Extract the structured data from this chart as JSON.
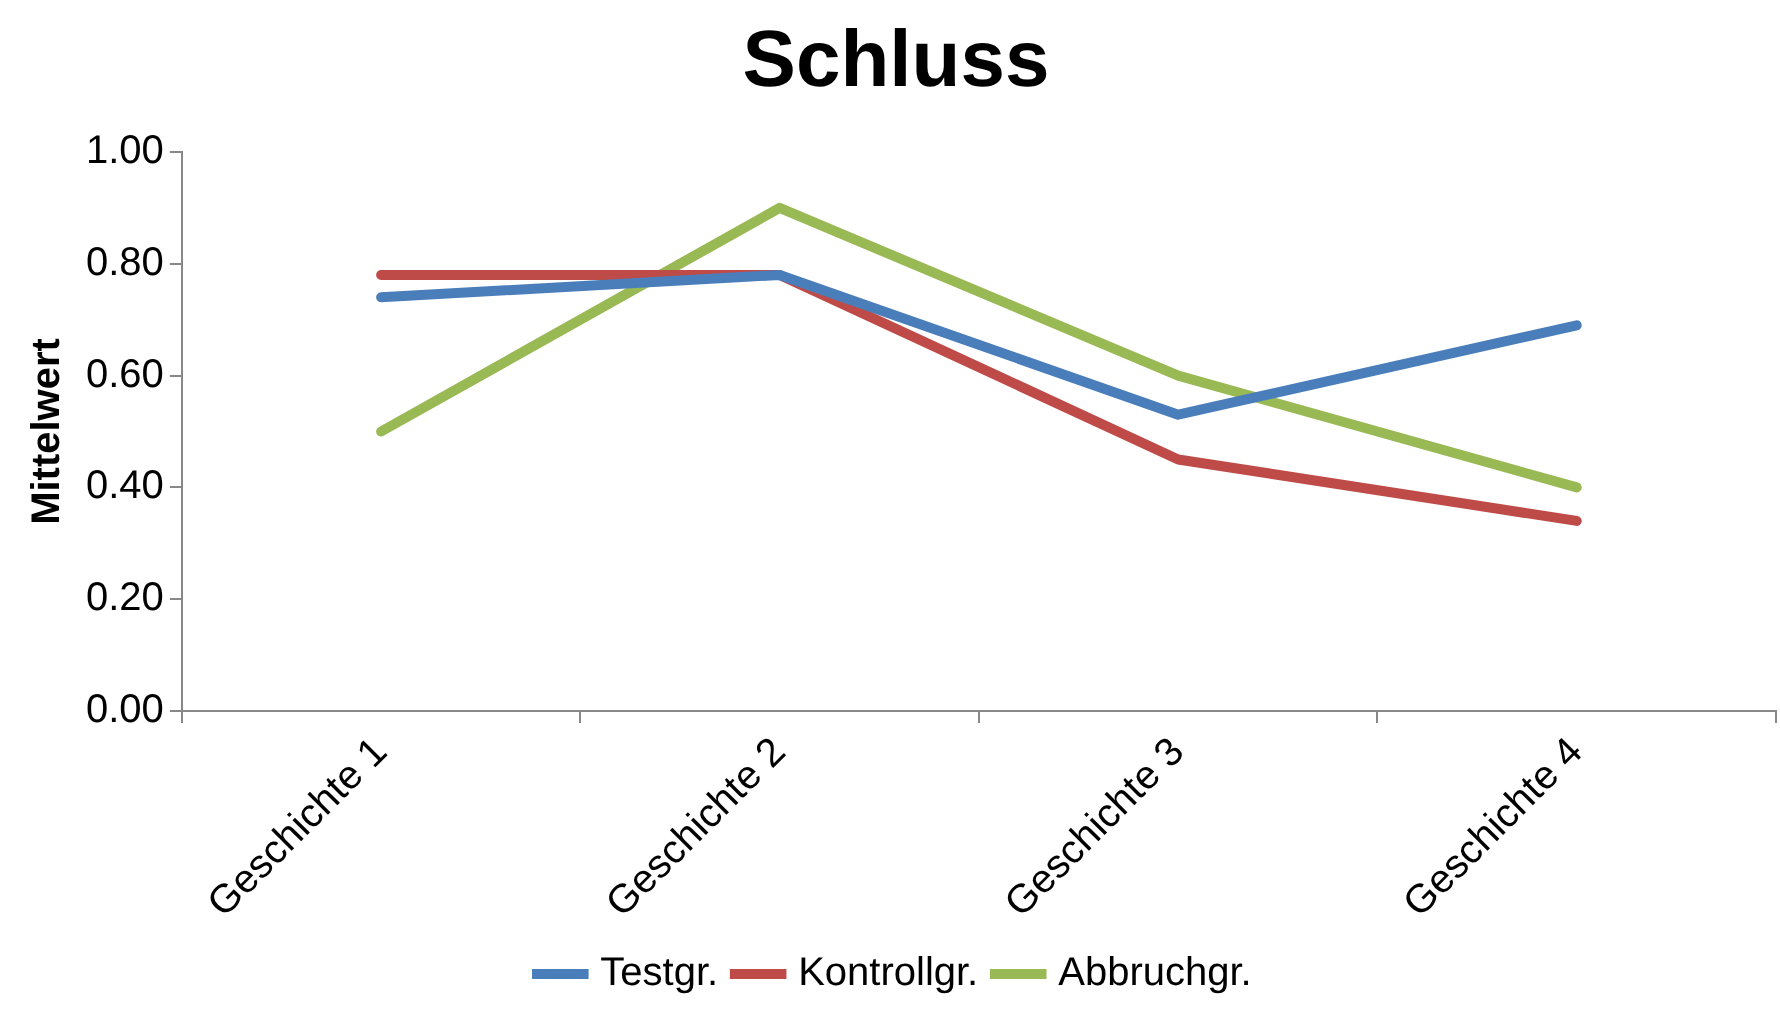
{
  "chart_data": {
    "type": "line",
    "title": "Schluss",
    "ylabel": "Mittelwert",
    "categories": [
      "Geschichte 1",
      "Geschichte 2",
      "Geschichte 3",
      "Geschichte 4"
    ],
    "series": [
      {
        "name": "Testgr.",
        "color": "#4a7ebb",
        "values": [
          0.74,
          0.78,
          0.53,
          0.69
        ]
      },
      {
        "name": "Kontrollgr.",
        "color": "#be4b48",
        "values": [
          0.78,
          0.78,
          0.45,
          0.34
        ]
      },
      {
        "name": "Abbruchgr.",
        "color": "#98b954",
        "values": [
          0.5,
          0.9,
          0.6,
          0.4
        ]
      }
    ],
    "ylim": [
      0,
      1
    ],
    "yticks": [
      {
        "value": 0,
        "label": "0.00"
      },
      {
        "value": 0.2,
        "label": "0.20"
      },
      {
        "value": 0.4,
        "label": "0.40"
      },
      {
        "value": 0.6,
        "label": "0.60"
      },
      {
        "value": 0.8,
        "label": "0.80"
      },
      {
        "value": 1,
        "label": "1.00"
      }
    ],
    "grid": false,
    "legend": "bottom",
    "marker": "none",
    "line_style": "solid"
  }
}
